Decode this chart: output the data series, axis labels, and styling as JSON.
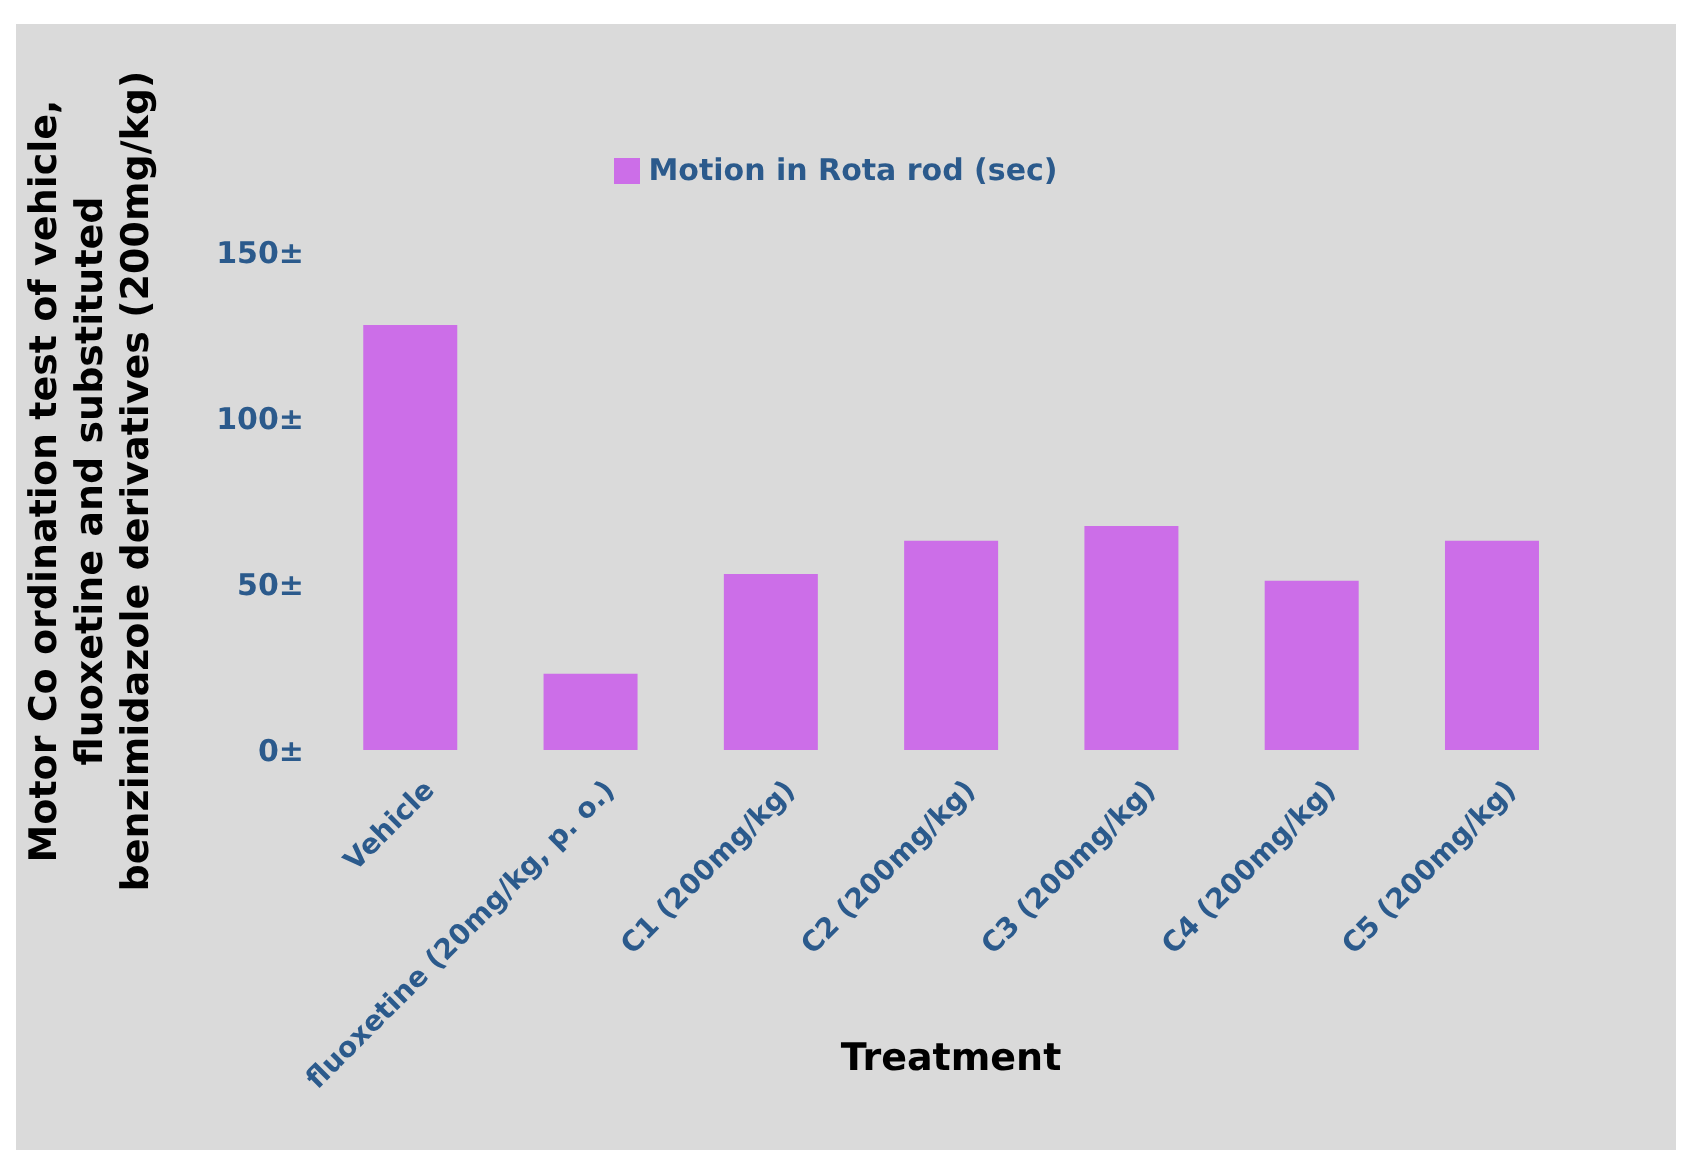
{
  "chart_data": {
    "type": "bar",
    "xlabel": "Treatment",
    "ylabel": "Motor Co ordination test of vehicle, fluoxetine and substituted benzimidazole derivatives (200mg/kg)",
    "categories": [
      "Vehicle",
      "fluoxetine (20mg/kg, p. o.)",
      "C1 (200mg/kg)",
      "C2 (200mg/kg)",
      "C3 (200mg/kg)",
      "C4 (200mg/kg)",
      "C5 (200mg/kg)"
    ],
    "series": [
      {
        "name": "Motion in Rota rod (sec)",
        "color": "#cc6ee8",
        "values": [
          128,
          23,
          53,
          63,
          67.5,
          51,
          63
        ]
      }
    ],
    "ylim": [
      0,
      150
    ],
    "yticks": [
      {
        "value": 0,
        "label": "0±"
      },
      {
        "value": 50,
        "label": "50±"
      },
      {
        "value": 100,
        "label": "100±"
      },
      {
        "value": 150,
        "label": "150±"
      }
    ],
    "grid": false,
    "legend": "top"
  }
}
